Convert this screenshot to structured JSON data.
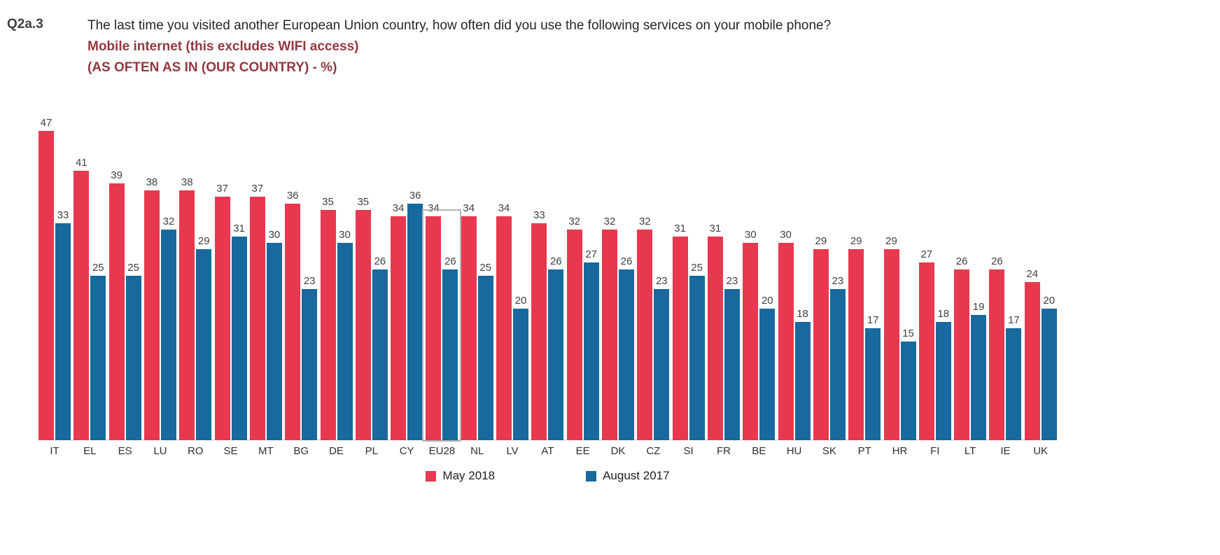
{
  "header": {
    "code": "Q2a.3",
    "question": "The last time you visited another European Union country, how often did you use the following services on your mobile phone?",
    "subtitle": "Mobile internet (this excludes WIFI access)",
    "note": "(AS OFTEN AS IN (OUR COUNTRY) - %)"
  },
  "colors": {
    "may_2018": "#e8384f",
    "august_2017": "#17699e",
    "subtitle_text": "#93383f",
    "highlight_border": "#b3b3b3",
    "axis_line": "#c8c8c8"
  },
  "chart_data": {
    "type": "bar",
    "title": "Mobile internet (this excludes WIFI access)",
    "subtitle": "(AS OFTEN AS IN (OUR COUNTRY) - %)",
    "xlabel": "",
    "ylabel": "",
    "ylim": [
      0,
      50
    ],
    "grid": false,
    "value_labels": true,
    "legend_position": "bottom",
    "highlight_category": "EU28",
    "categories": [
      "IT",
      "EL",
      "ES",
      "LU",
      "RO",
      "SE",
      "MT",
      "BG",
      "DE",
      "PL",
      "CY",
      "EU28",
      "NL",
      "LV",
      "AT",
      "EE",
      "DK",
      "CZ",
      "SI",
      "FR",
      "BE",
      "HU",
      "SK",
      "PT",
      "HR",
      "FI",
      "LT",
      "IE",
      "UK"
    ],
    "series": [
      {
        "name": "May 2018",
        "color": "#e8384f",
        "values": [
          47,
          41,
          39,
          38,
          38,
          37,
          37,
          36,
          35,
          35,
          34,
          34,
          34,
          34,
          33,
          32,
          32,
          32,
          31,
          31,
          30,
          30,
          29,
          29,
          29,
          27,
          26,
          26,
          24
        ]
      },
      {
        "name": "August 2017",
        "color": "#17699e",
        "values": [
          33,
          25,
          25,
          32,
          29,
          31,
          30,
          23,
          30,
          26,
          36,
          26,
          25,
          20,
          26,
          27,
          26,
          23,
          25,
          23,
          20,
          18,
          23,
          17,
          15,
          18,
          19,
          17,
          20
        ]
      }
    ]
  }
}
